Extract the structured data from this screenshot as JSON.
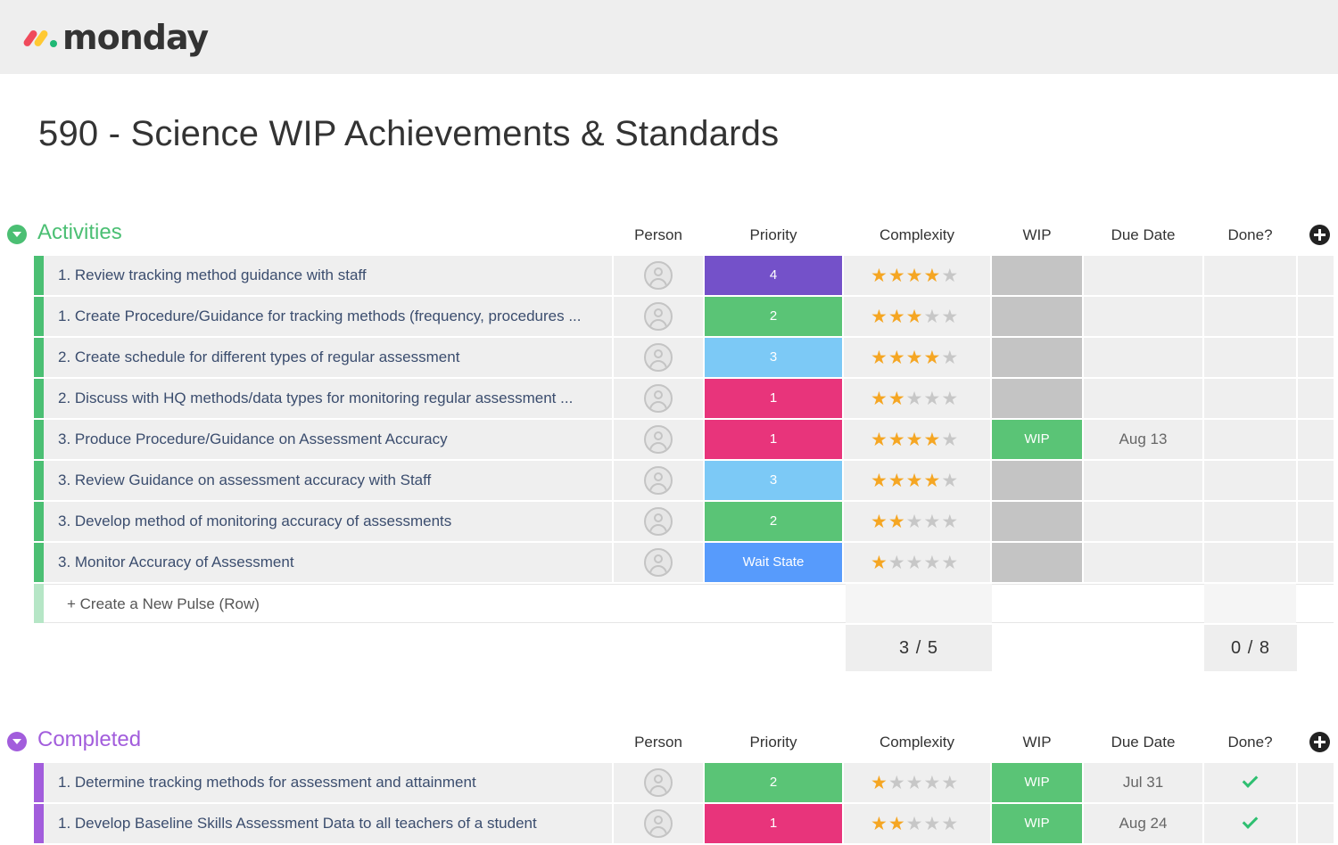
{
  "app": {
    "logo_text": "monday"
  },
  "page": {
    "title": "590 - Science WIP Achievements & Standards"
  },
  "colors": {
    "activities": "#4bbf73",
    "completed": "#a25ddc",
    "purple": "#7e57c2",
    "green": "#5ac476",
    "blue_light": "#7cc9f6",
    "pink": "#e8347b",
    "blue": "#579bfc",
    "grey": "#c4c4c4",
    "star": "#f5a623"
  },
  "columns": {
    "person": "Person",
    "priority": "Priority",
    "complexity": "Complexity",
    "wip": "WIP",
    "due_date": "Due Date",
    "done": "Done?"
  },
  "groups": [
    {
      "name": "Activities",
      "color": "#4bbf73",
      "rows": [
        {
          "name": "1. Review tracking method guidance with staff",
          "priority": "4",
          "priority_color": "#7451c9",
          "complexity": 4,
          "wip": "",
          "wip_color": "#c4c4c4",
          "due": "",
          "done": false
        },
        {
          "name": "1. Create Procedure/Guidance for tracking methods (frequency, procedures ...",
          "priority": "2",
          "priority_color": "#5ac476",
          "complexity": 3,
          "wip": "",
          "wip_color": "#c4c4c4",
          "due": "",
          "done": false
        },
        {
          "name": "2. Create schedule for different types of regular assessment",
          "priority": "3",
          "priority_color": "#7cc9f6",
          "complexity": 4,
          "wip": "",
          "wip_color": "#c4c4c4",
          "due": "",
          "done": false
        },
        {
          "name": "2. Discuss with HQ methods/data types for monitoring regular assessment ...",
          "priority": "1",
          "priority_color": "#e8347b",
          "complexity": 2,
          "wip": "",
          "wip_color": "#c4c4c4",
          "due": "",
          "done": false
        },
        {
          "name": "3. Produce Procedure/Guidance on Assessment Accuracy",
          "priority": "1",
          "priority_color": "#e8347b",
          "complexity": 4,
          "wip": "WIP",
          "wip_color": "#5ac476",
          "due": "Aug 13",
          "done": false
        },
        {
          "name": "3. Review Guidance on assessment accuracy with Staff",
          "priority": "3",
          "priority_color": "#7cc9f6",
          "complexity": 4,
          "wip": "",
          "wip_color": "#c4c4c4",
          "due": "",
          "done": false
        },
        {
          "name": "3. Develop method of monitoring accuracy of assessments",
          "priority": "2",
          "priority_color": "#5ac476",
          "complexity": 2,
          "wip": "",
          "wip_color": "#c4c4c4",
          "due": "",
          "done": false
        },
        {
          "name": "3. Monitor Accuracy of Assessment",
          "priority": "Wait State",
          "priority_color": "#579bfc",
          "complexity": 1,
          "wip": "",
          "wip_color": "#c4c4c4",
          "due": "",
          "done": false
        }
      ],
      "new_row_label": "+ Create a New Pulse (Row)",
      "summary": {
        "complexity": "3 / 5",
        "done": "0 / 8"
      }
    },
    {
      "name": "Completed",
      "color": "#a25ddc",
      "rows": [
        {
          "name": "1. Determine tracking methods for assessment and attainment",
          "priority": "2",
          "priority_color": "#5ac476",
          "complexity": 1,
          "wip": "WIP",
          "wip_color": "#5ac476",
          "due": "Jul 31",
          "done": true
        },
        {
          "name": "1. Develop Baseline Skills Assessment Data to all teachers of a student",
          "priority": "1",
          "priority_color": "#e8347b",
          "complexity": 2,
          "wip": "WIP",
          "wip_color": "#5ac476",
          "due": "Aug 24",
          "done": true
        }
      ]
    }
  ]
}
